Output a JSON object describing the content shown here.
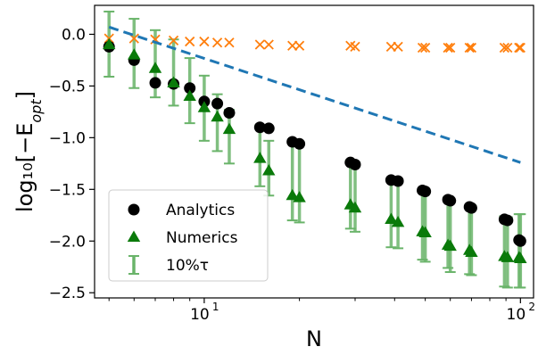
{
  "chart_data": {
    "type": "scatter",
    "xscale": "log",
    "xlim": [
      4.5,
      110
    ],
    "ylim": [
      -2.55,
      0.28
    ],
    "xlabel": "N",
    "ylabel": "log₁₀[−E",
    "ylabel_sub": "opt",
    "ylabel_close": "]",
    "x_ticks": [
      {
        "value": 10,
        "base": "10",
        "exp": "1"
      },
      {
        "value": 100,
        "base": "10",
        "exp": "2"
      }
    ],
    "y_ticks": [
      {
        "value": 0.0,
        "label": "0.0"
      },
      {
        "value": -0.5,
        "label": "−0.5"
      },
      {
        "value": -1.0,
        "label": "−1.0"
      },
      {
        "value": -1.5,
        "label": "−1.5"
      },
      {
        "value": -2.0,
        "label": "−2.0"
      },
      {
        "value": -2.5,
        "label": "−2.5"
      }
    ],
    "grid": false,
    "legend_position": "lower-left",
    "series": [
      {
        "name": "Analytics",
        "marker": "circle",
        "color": "#000000",
        "x": [
          5,
          6,
          7,
          8,
          9,
          10,
          11,
          12,
          15,
          16,
          19,
          20,
          29,
          30,
          39,
          41,
          49,
          50,
          59,
          60,
          69,
          70,
          89,
          91,
          99,
          100
        ],
        "y": [
          -0.12,
          -0.25,
          -0.47,
          -0.48,
          -0.52,
          -0.65,
          -0.67,
          -0.76,
          -0.9,
          -0.91,
          -1.04,
          -1.06,
          -1.24,
          -1.26,
          -1.41,
          -1.42,
          -1.51,
          -1.52,
          -1.6,
          -1.61,
          -1.67,
          -1.68,
          -1.79,
          -1.8,
          -1.99,
          -2.0
        ]
      },
      {
        "name": "Numerics",
        "marker": "triangle",
        "color": "#0a7a0a",
        "x": [
          5,
          6,
          7,
          8,
          9,
          10,
          11,
          12,
          15,
          16,
          19,
          20,
          29,
          30,
          39,
          41,
          49,
          50,
          59,
          60,
          69,
          70,
          89,
          91,
          99,
          100
        ],
        "y": [
          -0.1,
          -0.2,
          -0.33,
          -0.47,
          -0.6,
          -0.71,
          -0.8,
          -0.92,
          -1.2,
          -1.32,
          -1.56,
          -1.58,
          -1.65,
          -1.68,
          -1.79,
          -1.82,
          -1.91,
          -1.92,
          -2.04,
          -2.05,
          -2.09,
          -2.11,
          -2.15,
          -2.16,
          -2.16,
          -2.17
        ]
      },
      {
        "name": "10%τ",
        "marker": "errorbar",
        "color": "#6ab46a",
        "x": [
          5,
          6,
          7,
          8,
          9,
          10,
          11,
          12,
          15,
          16,
          19,
          20,
          29,
          30,
          39,
          41,
          49,
          50,
          59,
          60,
          69,
          70,
          89,
          91,
          99,
          100
        ],
        "upper": [
          0.22,
          0.15,
          0.04,
          -0.05,
          -0.23,
          -0.4,
          -0.58,
          -0.73,
          -0.88,
          -1.03,
          -1.05,
          -1.05,
          -1.22,
          -1.24,
          -1.4,
          -1.41,
          -1.5,
          -1.51,
          -1.58,
          -1.61,
          -1.66,
          -1.66,
          -1.76,
          -1.77,
          -1.74,
          -1.74
        ],
        "lower": [
          -0.41,
          -0.52,
          -0.61,
          -0.69,
          -0.86,
          -1.03,
          -1.13,
          -1.25,
          -1.47,
          -1.56,
          -1.8,
          -1.82,
          -1.88,
          -1.91,
          -2.06,
          -2.07,
          -2.18,
          -2.2,
          -2.26,
          -2.3,
          -2.32,
          -2.33,
          -2.44,
          -2.45,
          -2.45,
          -2.45
        ]
      },
      {
        "name": "",
        "marker": "x",
        "color": "#ff7f0e",
        "x": [
          5,
          6,
          7,
          8,
          9,
          10,
          11,
          12,
          15,
          16,
          19,
          20,
          29,
          30,
          39,
          41,
          49,
          50,
          59,
          60,
          69,
          70,
          89,
          91,
          99,
          100
        ],
        "y": [
          -0.04,
          -0.04,
          -0.05,
          -0.06,
          -0.07,
          -0.07,
          -0.08,
          -0.08,
          -0.1,
          -0.1,
          -0.11,
          -0.11,
          -0.11,
          -0.12,
          -0.12,
          -0.12,
          -0.13,
          -0.13,
          -0.13,
          -0.13,
          -0.13,
          -0.13,
          -0.13,
          -0.13,
          -0.13,
          -0.13
        ]
      },
      {
        "name": "",
        "marker": "dashed-line",
        "color": "#1f77b4",
        "x": [
          5,
          100
        ],
        "y": [
          0.07,
          -1.24
        ]
      }
    ]
  }
}
